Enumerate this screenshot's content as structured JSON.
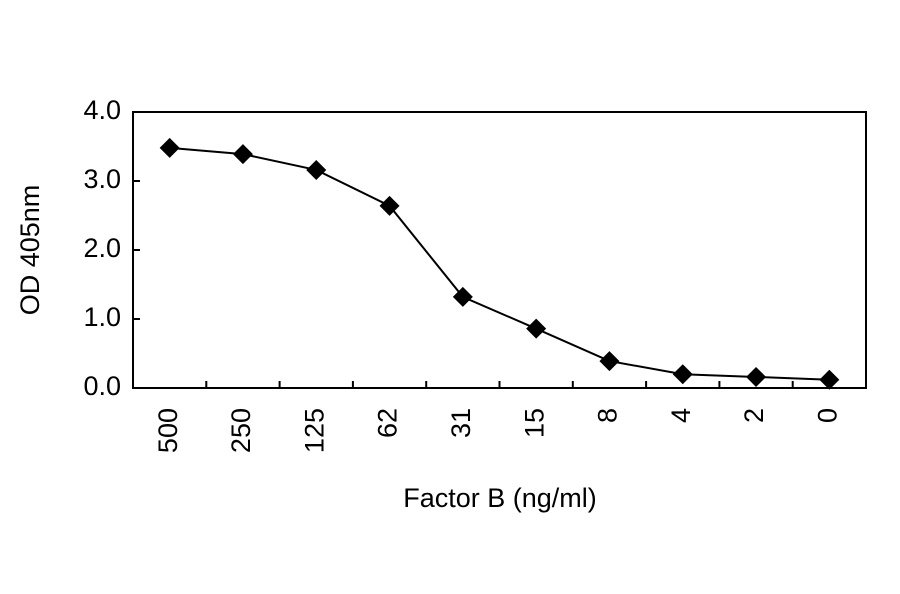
{
  "chart_data": {
    "type": "line",
    "x_label": "Factor B (ng/ml)",
    "y_label": "OD 405nm",
    "categories": [
      "500",
      "250",
      "125",
      "62",
      "31",
      "15",
      "8",
      "4",
      "2",
      "0"
    ],
    "values": [
      3.48,
      3.39,
      3.16,
      2.64,
      1.32,
      0.86,
      0.39,
      0.2,
      0.16,
      0.12
    ],
    "color": "#000000",
    "ylim": [
      0,
      4
    ],
    "yticks": [
      {
        "value": 0,
        "label": "0.0"
      },
      {
        "value": 1,
        "label": "1.0"
      },
      {
        "value": 2,
        "label": "2.0"
      },
      {
        "value": 3,
        "label": "3.0"
      },
      {
        "value": 4,
        "label": "4.0"
      }
    ],
    "grid": false
  }
}
